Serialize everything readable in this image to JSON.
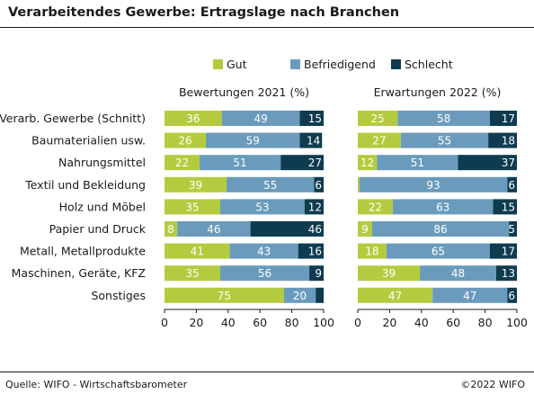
{
  "header": {
    "title": "Verarbeitendes Gewerbe: Ertragslage nach Branchen"
  },
  "footer": {
    "source": "Quelle: WIFO - Wirtschaftsbarometer",
    "copyright": "©2022 WIFO"
  },
  "colors": {
    "gut": "#b5cb3f",
    "befriedigend": "#6b9bbc",
    "schlecht": "#0e3b4f",
    "axis": "#1a1a1a"
  },
  "chart_data": {
    "type": "bar",
    "orientation": "horizontal",
    "stacked": true,
    "legend": [
      "Gut",
      "Befriedigend",
      "Schlecht"
    ],
    "legend_placement": "top",
    "categories": [
      "Verarb. Gewerbe (Schnitt)",
      "Baumaterialien usw.",
      "Nahrungsmittel",
      "Textil und Bekleidung",
      "Holz und Möbel",
      "Papier und Druck",
      "Metall, Metallprodukte",
      "Maschinen, Geräte, KFZ",
      "Sonstiges"
    ],
    "panels": [
      {
        "title": "Bewertungen 2021 (%)",
        "series": [
          {
            "name": "Gut",
            "values": [
              36,
              26,
              22,
              39,
              35,
              8,
              41,
              35,
              75
            ]
          },
          {
            "name": "Befriedigend",
            "values": [
              49,
              59,
              51,
              55,
              53,
              46,
              43,
              56,
              20
            ]
          },
          {
            "name": "Schlecht",
            "values": [
              15,
              14,
              27,
              6,
              12,
              46,
              16,
              9,
              5
            ]
          }
        ],
        "labels": [
          [
            "36",
            "49",
            "15"
          ],
          [
            "26",
            "59",
            "14"
          ],
          [
            "22",
            "51",
            "27"
          ],
          [
            "39",
            "55",
            "6"
          ],
          [
            "35",
            "53",
            "12"
          ],
          [
            "8",
            "46",
            "46"
          ],
          [
            "41",
            "43",
            "16"
          ],
          [
            "35",
            "56",
            "9"
          ],
          [
            "75",
            "20",
            ""
          ]
        ]
      },
      {
        "title": "Erwartungen 2022 (%)",
        "series": [
          {
            "name": "Gut",
            "values": [
              25,
              27,
              12,
              1,
              22,
              9,
              18,
              39,
              47
            ]
          },
          {
            "name": "Befriedigend",
            "values": [
              58,
              55,
              51,
              93,
              63,
              86,
              65,
              48,
              47
            ]
          },
          {
            "name": "Schlecht",
            "values": [
              17,
              18,
              37,
              6,
              15,
              5,
              17,
              13,
              6
            ]
          }
        ],
        "labels": [
          [
            "25",
            "58",
            "17"
          ],
          [
            "27",
            "55",
            "18"
          ],
          [
            "12",
            "51",
            "37"
          ],
          [
            "",
            "93",
            "6"
          ],
          [
            "22",
            "63",
            "15"
          ],
          [
            "9",
            "86",
            "5"
          ],
          [
            "18",
            "65",
            "17"
          ],
          [
            "39",
            "48",
            "13"
          ],
          [
            "47",
            "47",
            "6"
          ]
        ]
      }
    ],
    "xlim": [
      0,
      100
    ],
    "xticks": [
      "0",
      "20",
      "40",
      "60",
      "80",
      "100"
    ],
    "grid": false
  }
}
